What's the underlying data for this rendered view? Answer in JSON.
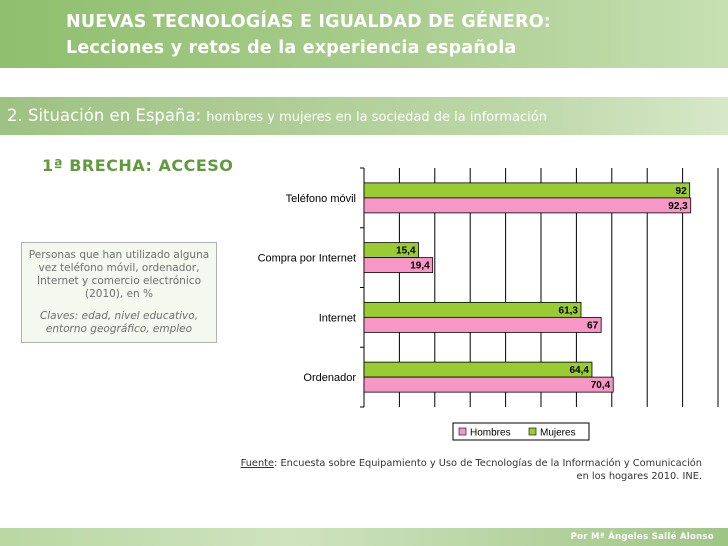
{
  "header": {
    "title_line1": "NUEVAS TECNOLOGÍAS E IGUALDAD DE GÉNERO:",
    "title_line2": "Lecciones y retos de la experiencia española"
  },
  "section": {
    "main": "2. Situación en España:",
    "sub": "hombres y mujeres en la sociedad de la información"
  },
  "subheading": "1ª BRECHA: ACCESO",
  "infobox": {
    "description": "Personas que han utilizado alguna vez teléfono móvil, ordenador, Internet y comercio electrónico (2010), en %",
    "claves": "Claves: edad, nivel educativo, entorno geográfico, empleo"
  },
  "source": {
    "label": "Fuente",
    "text": ": Encuesta sobre Equipamiento y Uso de Tecnologías de la Información y Comunicación en los hogares 2010. INE."
  },
  "footer": {
    "author": "Por Mª Ángeles Sallé Alonso"
  },
  "chart_data": {
    "type": "bar",
    "orientation": "horizontal",
    "categories": [
      "Teléfono móvil",
      "Compra por Internet",
      "Internet",
      "Ordenador"
    ],
    "series": [
      {
        "name": "Hombres",
        "color": "#f797c5",
        "values": [
          92.3,
          19.4,
          67,
          70.4
        ],
        "labels": [
          "92,3",
          "19,4",
          "67",
          "70,4"
        ]
      },
      {
        "name": "Mujeres",
        "color": "#99cc33",
        "values": [
          92,
          15.4,
          61.3,
          64.4
        ],
        "labels": [
          "92",
          "15,4",
          "61,3",
          "64,4"
        ]
      }
    ],
    "xlim": [
      0,
      100
    ],
    "grid": true,
    "legend": "bottom"
  }
}
